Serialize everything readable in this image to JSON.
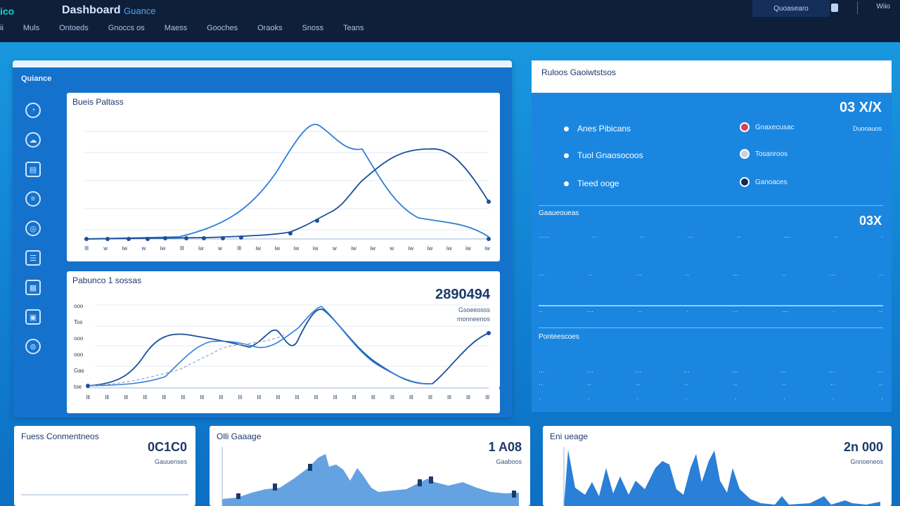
{
  "header": {
    "brand_left": "ico",
    "title": "Dashboard",
    "subtitle": "Guance",
    "nav": [
      "ii",
      "Muls",
      "Ontoeds",
      "Gnoccs os",
      "Maess",
      "Gooches",
      "Oraoks",
      "Snoss",
      "Teans"
    ],
    "top_right_box": "Quoasearo",
    "top_right_user": "Wiio"
  },
  "left_panel": {
    "title": "Quiance",
    "side_icons": [
      "gauge-icon",
      "cloud-icon",
      "document-icon",
      "database-icon",
      "target-icon",
      "list-icon",
      "grid-icon",
      "image-icon",
      "stack-icon",
      "bars-icon"
    ]
  },
  "chart1": {
    "title": "Bueis Paltass",
    "x_ticks": [
      "Ill",
      "w",
      "iw",
      "w",
      "iw",
      "Ill",
      "iw",
      "w",
      "Ill",
      "iw",
      "iw",
      "iw",
      "iw",
      "w",
      "iw",
      "iw",
      "w",
      "iw",
      "iw",
      "iw",
      "iw",
      "iw"
    ]
  },
  "chart2": {
    "title": "Pabunco 1 sossas",
    "big_number": "2890494",
    "caption1": "Gsoeeosss",
    "caption2": "monneenos",
    "y_ticks": [
      "ooo",
      "Tos",
      "ooo",
      "ooo",
      "Gas",
      "toe"
    ],
    "x_ticks": [
      "Ill",
      "Ill",
      "Ill",
      "Ill",
      "Ill",
      "Ill",
      "Ill",
      "Ill",
      "Ill",
      "Ill",
      "Ill",
      "Ill",
      "Ill",
      "Ill",
      "Ill",
      "Ill",
      "Ill",
      "Ill",
      "Ill",
      "Ill",
      "Ill",
      "Ill"
    ]
  },
  "right_panel": {
    "title": "Ruloos Gaoiwtstsos",
    "big_value": "03 X/X",
    "big_sub": "Duooauos",
    "legend": [
      {
        "label": "Anes Pibicans",
        "right": "Gnaxecusac"
      },
      {
        "label": "Tuol Gnaosocoos",
        "right": "Tosanroos"
      },
      {
        "label": "Tieed ooge",
        "right": "Ganoaces"
      }
    ],
    "section1_title": "Gaaueoueas",
    "section1_value": "03X",
    "section2_title": "Ponteescoes"
  },
  "bottom": [
    {
      "title": "Fuess Conmentneos",
      "number": "0C1C0",
      "sub": "Gauuenses"
    },
    {
      "title": "Olli Gaaage",
      "number": "1 A08",
      "sub": "Gaaboos"
    },
    {
      "title": "Eni ueage",
      "number": "2n 000",
      "sub": "Gnnoeneos"
    }
  ],
  "colors": {
    "header": "#0f1f3a",
    "accent": "#1472cc",
    "line1": "#2f7fd9",
    "line2": "#1b4f9a"
  }
}
